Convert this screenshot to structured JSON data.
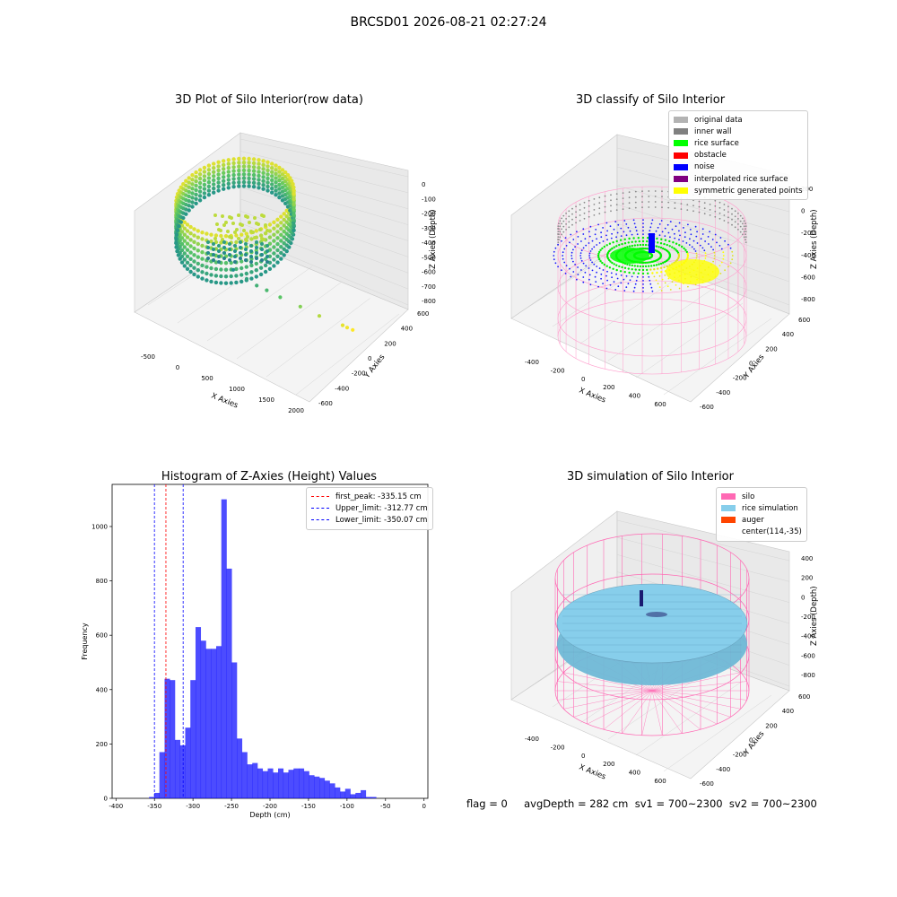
{
  "figure": {
    "suptitle": "BRCSD01 2026-08-21 02:27:24",
    "footer": "flag = 0     avgDepth = 282 cm  sv1 = 700~2300  sv2 = 700~2300"
  },
  "chart_data": [
    {
      "type": "scatter3d",
      "title": "3D Plot of Silo Interior(row data)",
      "xlabel": "X Axies",
      "ylabel": "Y Axies",
      "zlabel": "Z Axies (Depth)",
      "x_ticks": [
        "-500",
        "0",
        "500",
        "1000",
        "1500",
        "2000"
      ],
      "y_ticks": [
        "-600",
        "-400",
        "-200",
        "0",
        "200",
        "400",
        "600"
      ],
      "z_ticks": [
        "0",
        "-100",
        "-200",
        "-300",
        "-400",
        "-500",
        "-600",
        "-700",
        "-800"
      ],
      "colormap": "viridis",
      "outlier_points": [
        {
          "x": 700,
          "y": -150,
          "z": -520
        },
        {
          "x": 850,
          "y": -150,
          "z": -560
        },
        {
          "x": 950,
          "y": -160,
          "z": -590
        },
        {
          "x": 1050,
          "y": -170,
          "z": -610
        },
        {
          "x": 1200,
          "y": -170,
          "z": -640
        },
        {
          "x": 1400,
          "y": -190,
          "z": -680
        },
        {
          "x": 1600,
          "y": -200,
          "z": -720
        },
        {
          "x": 1800,
          "y": -250,
          "z": -760
        },
        {
          "x": 1850,
          "y": -250,
          "z": -770
        },
        {
          "x": 1900,
          "y": -260,
          "z": -780
        }
      ]
    },
    {
      "type": "scatter3d",
      "title": "3D classify of Silo Interior",
      "xlabel": "X Axies",
      "ylabel": "Y Axies",
      "zlabel": "Z Axies (Depth)",
      "x_ticks": [
        "-400",
        "-200",
        "0",
        "200",
        "400",
        "600"
      ],
      "y_ticks": [
        "-600",
        "-400",
        "-200",
        "0",
        "200",
        "400",
        "600"
      ],
      "z_ticks": [
        "200",
        "0",
        "-200",
        "-400",
        "-600",
        "-800"
      ],
      "legend": [
        {
          "label": "original data",
          "color": "#b3b3b3"
        },
        {
          "label": "inner wall",
          "color": "#808080"
        },
        {
          "label": "rice surface",
          "color": "#00ff00"
        },
        {
          "label": "obstacle",
          "color": "#ff0000"
        },
        {
          "label": "noise",
          "color": "#0000ff"
        },
        {
          "label": "interpolated rice surface",
          "color": "#800080"
        },
        {
          "label": "symmetric generated points",
          "color": "#ffff00"
        }
      ]
    },
    {
      "type": "bar",
      "title": "Histogram of Z-Axies (Height) Values",
      "xlabel": "Depth (cm)",
      "ylabel": "Frequency",
      "xlim": [
        -405,
        5
      ],
      "ylim": [
        0,
        1155
      ],
      "x_ticks": [
        -400,
        -350,
        -300,
        -250,
        -200,
        -150,
        -100,
        -50,
        0
      ],
      "y_ticks": [
        0,
        200,
        400,
        600,
        800,
        1000
      ],
      "bin_width": 6.7,
      "bar_color": "#0000ff",
      "bins": [
        {
          "x": -357,
          "value": 5
        },
        {
          "x": -350.3,
          "value": 20
        },
        {
          "x": -343.6,
          "value": 170
        },
        {
          "x": -336.9,
          "value": 440
        },
        {
          "x": -330.2,
          "value": 435
        },
        {
          "x": -323.5,
          "value": 215
        },
        {
          "x": -316.8,
          "value": 195
        },
        {
          "x": -310.1,
          "value": 260
        },
        {
          "x": -303.4,
          "value": 435
        },
        {
          "x": -296.7,
          "value": 630
        },
        {
          "x": -290,
          "value": 580
        },
        {
          "x": -283.3,
          "value": 550
        },
        {
          "x": -276.6,
          "value": 550
        },
        {
          "x": -269.9,
          "value": 560
        },
        {
          "x": -263.2,
          "value": 1100
        },
        {
          "x": -256.5,
          "value": 845
        },
        {
          "x": -249.8,
          "value": 500
        },
        {
          "x": -243.1,
          "value": 220
        },
        {
          "x": -236.4,
          "value": 170
        },
        {
          "x": -229.7,
          "value": 125
        },
        {
          "x": -223,
          "value": 130
        },
        {
          "x": -216.3,
          "value": 110
        },
        {
          "x": -209.6,
          "value": 100
        },
        {
          "x": -202.9,
          "value": 110
        },
        {
          "x": -196.2,
          "value": 95
        },
        {
          "x": -189.5,
          "value": 110
        },
        {
          "x": -182.8,
          "value": 95
        },
        {
          "x": -176.1,
          "value": 105
        },
        {
          "x": -169.4,
          "value": 110
        },
        {
          "x": -162.7,
          "value": 110
        },
        {
          "x": -156,
          "value": 100
        },
        {
          "x": -149.3,
          "value": 85
        },
        {
          "x": -142.6,
          "value": 80
        },
        {
          "x": -135.9,
          "value": 75
        },
        {
          "x": -129.2,
          "value": 65
        },
        {
          "x": -122.5,
          "value": 55
        },
        {
          "x": -115.8,
          "value": 40
        },
        {
          "x": -109.1,
          "value": 25
        },
        {
          "x": -102.4,
          "value": 35
        },
        {
          "x": -95.7,
          "value": 15
        },
        {
          "x": -89,
          "value": 20
        },
        {
          "x": -82.3,
          "value": 30
        },
        {
          "x": -75.6,
          "value": 5
        },
        {
          "x": -68.9,
          "value": 5
        }
      ],
      "vlines": [
        {
          "label": "first_peak: -335.15 cm",
          "x": -335.15,
          "color": "#ff0000"
        },
        {
          "label": "Upper_limit: -312.77 cm",
          "x": -312.77,
          "color": "#0000ff"
        },
        {
          "label": "Lower_limit: -350.07 cm",
          "x": -350.07,
          "color": "#0000ff"
        }
      ]
    },
    {
      "type": "surface3d",
      "title": "3D simulation of Silo Interior",
      "xlabel": "X Axies",
      "ylabel": "Y Axies",
      "zlabel": "Z Axies (Depth)",
      "x_ticks": [
        "-400",
        "-200",
        "0",
        "200",
        "400",
        "600"
      ],
      "y_ticks": [
        "-600",
        "-400",
        "-200",
        "0",
        "200",
        "400",
        "600"
      ],
      "z_ticks": [
        "400",
        "200",
        "0",
        "-200",
        "-400",
        "-600",
        "-800"
      ],
      "legend": [
        {
          "label": "silo",
          "color": "#ff69b4"
        },
        {
          "label": "rice simulation",
          "color": "#87ceeb"
        },
        {
          "label": "auger",
          "color": "#ff4500"
        },
        {
          "label": "center(114,-35)",
          "color": ""
        }
      ]
    }
  ]
}
